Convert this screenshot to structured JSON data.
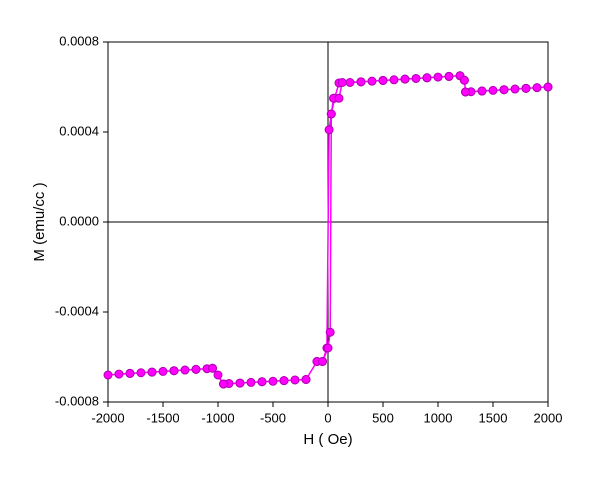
{
  "chart_data": {
    "type": "scatter-line",
    "x_label": "H ( Oe)",
    "y_label": "M (emu/cc )",
    "color": "#ff00ff",
    "edge_color": "#b000b0",
    "xlim": [
      -2000,
      2000
    ],
    "xticks": [
      -2000,
      -1500,
      -1000,
      -500,
      0,
      500,
      1000,
      1500,
      2000
    ],
    "ylim": [
      -0.0008,
      0.0008
    ],
    "yticks": [
      -0.0008,
      -0.0004,
      {
        "value": 0,
        "label": "0.0000"
      },
      0.0004,
      0.0008
    ],
    "zero_lines": true,
    "x": [
      2000,
      1900,
      1800,
      1700,
      1600,
      1500,
      1400,
      1300,
      1250,
      1240,
      1200,
      1100,
      1000,
      900,
      800,
      700,
      600,
      500,
      400,
      300,
      200,
      100,
      60,
      30,
      10,
      -10,
      -50,
      -100,
      -200,
      -300,
      -400,
      -500,
      -600,
      -700,
      -800,
      -900,
      -950,
      -1000,
      -1050,
      -1100,
      -1200,
      -1300,
      -1400,
      -1500,
      -1600,
      -1700,
      -1800,
      -1900,
      -2000,
      -1800,
      -1600,
      -1400,
      -1200,
      -1050,
      -950,
      -800,
      -600,
      -400,
      -200,
      -100,
      -50,
      0,
      20,
      30,
      50,
      100,
      130,
      300,
      500,
      700,
      900,
      1100,
      1200,
      1240,
      1250,
      1400,
      1600,
      1800,
      2000
    ],
    "values": [
      0.0006,
      0.000597,
      0.000594,
      0.000591,
      0.000588,
      0.000585,
      0.000582,
      0.000579,
      0.000578,
      0.00063,
      0.00065,
      0.000647,
      0.000644,
      0.000641,
      0.000638,
      0.000635,
      0.000632,
      0.000629,
      0.000626,
      0.000623,
      0.00062,
      0.000618,
      0.00055,
      0.00048,
      0.00041,
      -0.00056,
      -0.00062,
      -0.00062,
      -0.0007,
      -0.000702,
      -0.000705,
      -0.000708,
      -0.00071,
      -0.000713,
      -0.000716,
      -0.000718,
      -0.00072,
      -0.00068,
      -0.00065,
      -0.000652,
      -0.000655,
      -0.000658,
      -0.000661,
      -0.000664,
      -0.000667,
      -0.00067,
      -0.000673,
      -0.000676,
      -0.00068,
      -0.000673,
      -0.000667,
      -0.000661,
      -0.000655,
      -0.00065,
      -0.00072,
      -0.000716,
      -0.00071,
      -0.000705,
      -0.0007,
      -0.00062,
      -0.00062,
      -0.00056,
      -0.00049,
      0.00048,
      0.00055,
      0.00055,
      0.00062,
      0.000623,
      0.000629,
      0.000635,
      0.000641,
      0.000647,
      0.00065,
      0.00063,
      0.000578,
      0.000582,
      0.000588,
      0.000594,
      0.0006
    ]
  }
}
